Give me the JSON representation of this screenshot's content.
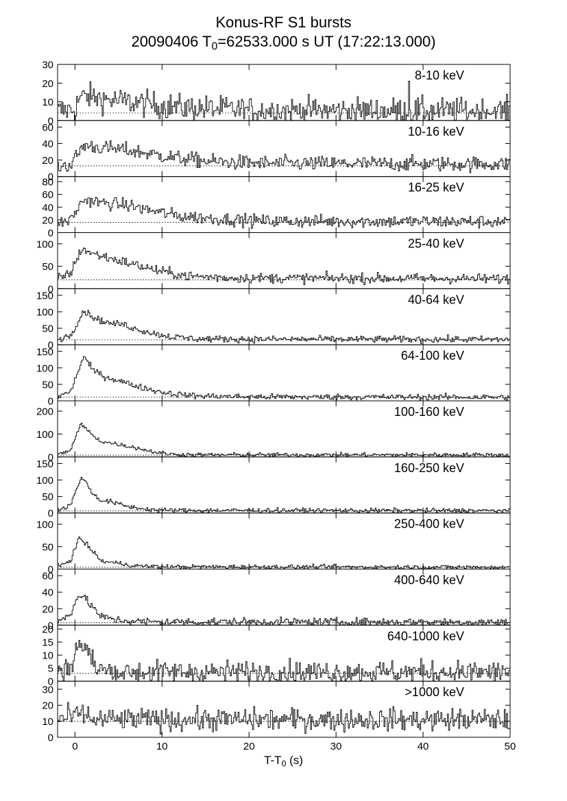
{
  "title": {
    "line1": "Konus-RF S1 bursts",
    "line2_prefix": "20090406 T",
    "line2_sub": "0",
    "line2_suffix": "=62533.000 s UT (17:22:13.000)"
  },
  "xaxis_label": {
    "prefix": "T-T",
    "sub": "0",
    "suffix": " (s)"
  },
  "chart_data": {
    "type": "line",
    "style": "step",
    "xlim": [
      -2,
      50
    ],
    "xticks": [
      0,
      10,
      20,
      30,
      40,
      50
    ],
    "panels": [
      {
        "label": "8-10 keV",
        "ylim": [
          0,
          30
        ],
        "yticks": [
          0,
          10,
          20,
          30
        ],
        "background": 4,
        "profile": [
          [
            -2,
            5
          ],
          [
            0,
            6
          ],
          [
            0.5,
            12
          ],
          [
            1.5,
            13
          ],
          [
            4,
            11
          ],
          [
            8,
            9
          ],
          [
            12,
            7
          ],
          [
            20,
            5.5
          ],
          [
            50,
            5
          ]
        ],
        "noise": 3.5,
        "spikes": [
          [
            38.4,
            21
          ]
        ]
      },
      {
        "label": "10-16 keV",
        "ylim": [
          0,
          68
        ],
        "yticks": [
          0,
          20,
          40,
          60
        ],
        "background": 13,
        "profile": [
          [
            -2,
            12
          ],
          [
            -0.5,
            14
          ],
          [
            1,
            38
          ],
          [
            3,
            35
          ],
          [
            6,
            32
          ],
          [
            9,
            27
          ],
          [
            12,
            22
          ],
          [
            16,
            18
          ],
          [
            22,
            16
          ],
          [
            50,
            15
          ]
        ],
        "noise": 4.5
      },
      {
        "label": "16-25 keV",
        "ylim": [
          0,
          88
        ],
        "yticks": [
          0,
          20,
          40,
          60,
          80
        ],
        "background": 16,
        "profile": [
          [
            -2,
            15
          ],
          [
            -0.5,
            20
          ],
          [
            1,
            52
          ],
          [
            3,
            47
          ],
          [
            6,
            43
          ],
          [
            9,
            34
          ],
          [
            12,
            26
          ],
          [
            16,
            22
          ],
          [
            22,
            18
          ],
          [
            50,
            17
          ]
        ],
        "noise": 5
      },
      {
        "label": "25-40 keV",
        "ylim": [
          0,
          125
        ],
        "yticks": [
          0,
          50,
          100
        ],
        "background": 20,
        "profile": [
          [
            -2,
            22
          ],
          [
            -0.5,
            35
          ],
          [
            0.8,
            90
          ],
          [
            2,
            78
          ],
          [
            4,
            68
          ],
          [
            6,
            58
          ],
          [
            8,
            48
          ],
          [
            10,
            38
          ],
          [
            13,
            28
          ],
          [
            18,
            24
          ],
          [
            50,
            22
          ]
        ],
        "noise": 5.5
      },
      {
        "label": "40-64 keV",
        "ylim": [
          0,
          170
        ],
        "yticks": [
          0,
          50,
          100,
          150
        ],
        "background": 15,
        "profile": [
          [
            -2,
            15
          ],
          [
            -0.5,
            30
          ],
          [
            1,
            103
          ],
          [
            2.5,
            78
          ],
          [
            4,
            65
          ],
          [
            5.5,
            62
          ],
          [
            7,
            48
          ],
          [
            9,
            35
          ],
          [
            11,
            24
          ],
          [
            14,
            18
          ],
          [
            20,
            17
          ],
          [
            50,
            16
          ]
        ],
        "noise": 5
      },
      {
        "label": "64-100 keV",
        "ylim": [
          0,
          170
        ],
        "yticks": [
          0,
          50,
          100,
          150
        ],
        "background": 11,
        "profile": [
          [
            -2,
            12
          ],
          [
            -0.5,
            28
          ],
          [
            1,
            135
          ],
          [
            2,
            95
          ],
          [
            3.5,
            72
          ],
          [
            5,
            62
          ],
          [
            7,
            45
          ],
          [
            9,
            32
          ],
          [
            11,
            22
          ],
          [
            14,
            15
          ],
          [
            20,
            12
          ],
          [
            50,
            11
          ]
        ],
        "noise": 4.5
      },
      {
        "label": "100-160 keV",
        "ylim": [
          0,
          245
        ],
        "yticks": [
          0,
          100,
          200
        ],
        "background": 8,
        "profile": [
          [
            -2,
            8
          ],
          [
            -0.5,
            30
          ],
          [
            0.7,
            145
          ],
          [
            2,
            95
          ],
          [
            3,
            68
          ],
          [
            5,
            55
          ],
          [
            7,
            40
          ],
          [
            9,
            22
          ],
          [
            11,
            12
          ],
          [
            14,
            9
          ],
          [
            50,
            9
          ]
        ],
        "noise": 4.5
      },
      {
        "label": "160-250 keV",
        "ylim": [
          0,
          170
        ],
        "yticks": [
          0,
          50,
          100,
          150
        ],
        "background": 6,
        "profile": [
          [
            -2,
            6
          ],
          [
            -0.5,
            25
          ],
          [
            0.8,
            112
          ],
          [
            2,
            60
          ],
          [
            3,
            38
          ],
          [
            4,
            35
          ],
          [
            6,
            20
          ],
          [
            8,
            12
          ],
          [
            10,
            8
          ],
          [
            50,
            7
          ]
        ],
        "noise": 3.5
      },
      {
        "label": "250-400 keV",
        "ylim": [
          0,
          125
        ],
        "yticks": [
          0,
          50,
          100
        ],
        "background": 4,
        "profile": [
          [
            -2,
            4
          ],
          [
            -0.5,
            20
          ],
          [
            0.5,
            70
          ],
          [
            1.8,
            45
          ],
          [
            3,
            18
          ],
          [
            5,
            13
          ],
          [
            7,
            7
          ],
          [
            10,
            5
          ],
          [
            50,
            4
          ]
        ],
        "noise": 2.5
      },
      {
        "label": "400-640 keV",
        "ylim": [
          0,
          68
        ],
        "yticks": [
          0,
          20,
          40,
          60
        ],
        "background": 3,
        "profile": [
          [
            -2,
            3
          ],
          [
            -0.5,
            15
          ],
          [
            0.5,
            38
          ],
          [
            1.8,
            25
          ],
          [
            3,
            10
          ],
          [
            5,
            6
          ],
          [
            8,
            4
          ],
          [
            50,
            3.5
          ]
        ],
        "noise": 2.5
      },
      {
        "label": "640-1000 keV",
        "ylim": [
          0,
          21.5
        ],
        "yticks": [
          0,
          5,
          10,
          15,
          20
        ],
        "background": 3,
        "profile": [
          [
            -2,
            3
          ],
          [
            -0.5,
            6
          ],
          [
            0.5,
            15
          ],
          [
            1.5,
            11
          ],
          [
            2.5,
            5
          ],
          [
            4,
            3.5
          ],
          [
            50,
            3.5
          ]
        ],
        "noise": 2.2
      },
      {
        "label": ">1000 keV",
        "ylim": [
          0,
          35
        ],
        "yticks": [
          0,
          10,
          20,
          30
        ],
        "background": 10,
        "profile": [
          [
            -2,
            11
          ],
          [
            0,
            13
          ],
          [
            1,
            15
          ],
          [
            2,
            11
          ],
          [
            50,
            11
          ]
        ],
        "noise": 3.5
      }
    ]
  }
}
